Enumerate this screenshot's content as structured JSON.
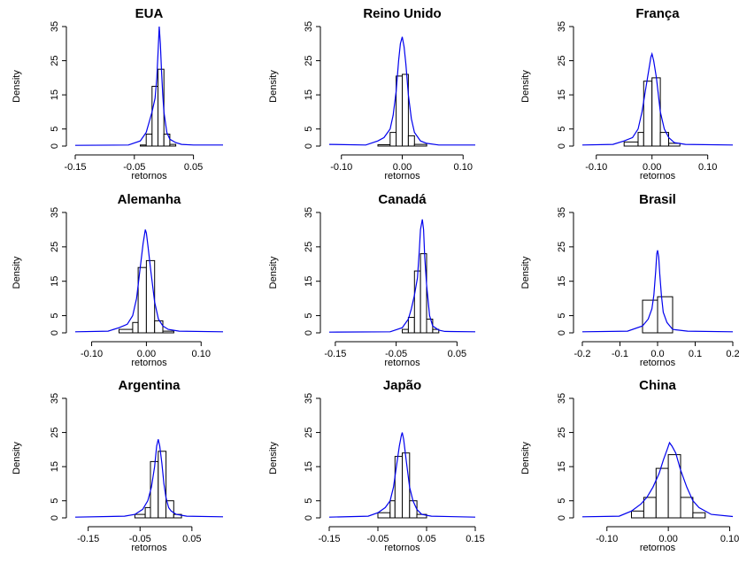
{
  "figure": {
    "panel_count": 9
  },
  "chart_data": [
    {
      "type": "histogram",
      "title": "EUA",
      "xlabel": "retornos",
      "ylabel": "Density",
      "xticks": [
        -0.15,
        -0.05,
        0.05
      ],
      "xtick_labels": [
        "-0.15",
        "-0.05",
        "0.05"
      ],
      "xlim": [
        -0.15,
        0.1
      ],
      "yticks": [
        0,
        5,
        15,
        25,
        35
      ],
      "ytick_labels": [
        "0",
        "5",
        "15",
        "25",
        "35"
      ],
      "ylim": [
        0,
        35
      ],
      "bins": [
        [
          -0.04,
          -0.03,
          0.3
        ],
        [
          -0.03,
          -0.02,
          3.5
        ],
        [
          -0.02,
          -0.01,
          17.5
        ],
        [
          -0.01,
          0.0,
          22.5
        ],
        [
          0.0,
          0.01,
          3.5
        ],
        [
          0.01,
          0.02,
          0.5
        ]
      ],
      "density": {
        "x": [
          -0.15,
          -0.06,
          -0.04,
          -0.03,
          -0.025,
          -0.02,
          -0.015,
          -0.012,
          -0.01,
          -0.008,
          -0.006,
          -0.004,
          -0.002,
          0.0,
          0.005,
          0.01,
          0.02,
          0.03,
          0.05,
          0.1
        ],
        "y": [
          0.2,
          0.3,
          1.5,
          4,
          7,
          10,
          14,
          20,
          27,
          35,
          30,
          22,
          15,
          10,
          4,
          2,
          1.0,
          0.5,
          0.3,
          0.3
        ]
      },
      "color": "#0000ee"
    },
    {
      "type": "histogram",
      "title": "Reino Unido",
      "xlabel": "retornos",
      "ylabel": "Density",
      "xticks": [
        -0.1,
        0.0,
        0.1
      ],
      "xtick_labels": [
        "-0.10",
        "0.00",
        "0.10"
      ],
      "xlim": [
        -0.12,
        0.12
      ],
      "yticks": [
        0,
        5,
        15,
        25,
        35
      ],
      "ytick_labels": [
        "0",
        "5",
        "15",
        "25",
        "35"
      ],
      "ylim": [
        0,
        35
      ],
      "bins": [
        [
          -0.04,
          -0.02,
          0.4
        ],
        [
          -0.02,
          -0.01,
          4
        ],
        [
          -0.01,
          0.0,
          20.5
        ],
        [
          0.0,
          0.01,
          21
        ],
        [
          0.01,
          0.02,
          3
        ],
        [
          0.02,
          0.04,
          0.5
        ]
      ],
      "density": {
        "x": [
          -0.12,
          -0.06,
          -0.04,
          -0.03,
          -0.02,
          -0.015,
          -0.01,
          -0.006,
          -0.003,
          0.0,
          0.003,
          0.006,
          0.01,
          0.015,
          0.02,
          0.03,
          0.04,
          0.06,
          0.12
        ],
        "y": [
          0.5,
          0.3,
          1.5,
          2.5,
          5,
          9,
          16,
          25,
          30,
          32,
          29,
          24,
          15,
          8,
          4,
          1.5,
          0.8,
          0.3,
          0.3
        ]
      },
      "color": "#0000ee"
    },
    {
      "type": "histogram",
      "title": "França",
      "xlabel": "retornos",
      "ylabel": "Density",
      "xticks": [
        -0.1,
        0.0,
        0.1
      ],
      "xtick_labels": [
        "-0.10",
        "0.00",
        "0.10"
      ],
      "xlim": [
        -0.125,
        0.145
      ],
      "yticks": [
        0,
        5,
        15,
        25,
        35
      ],
      "ytick_labels": [
        "0",
        "5",
        "15",
        "25",
        "35"
      ],
      "ylim": [
        0,
        35
      ],
      "bins": [
        [
          -0.05,
          -0.025,
          1.2
        ],
        [
          -0.025,
          -0.015,
          4
        ],
        [
          -0.015,
          0.0,
          19
        ],
        [
          0.0,
          0.015,
          20
        ],
        [
          0.015,
          0.03,
          4
        ],
        [
          0.03,
          0.05,
          0.8
        ]
      ],
      "density": {
        "x": [
          -0.125,
          -0.07,
          -0.05,
          -0.035,
          -0.025,
          -0.018,
          -0.012,
          -0.006,
          -0.002,
          0.0,
          0.003,
          0.008,
          0.015,
          0.022,
          0.03,
          0.04,
          0.06,
          0.145
        ],
        "y": [
          0.3,
          0.5,
          1.5,
          2.5,
          5,
          10,
          16,
          22,
          26,
          27,
          25,
          20,
          10,
          5,
          2.5,
          1,
          0.5,
          0.3
        ]
      },
      "color": "#0000ee"
    },
    {
      "type": "histogram",
      "title": "Alemanha",
      "xlabel": "retornos",
      "ylabel": "Density",
      "xticks": [
        -0.1,
        0.0,
        0.1
      ],
      "xtick_labels": [
        "-0.10",
        "0.00",
        "0.10"
      ],
      "xlim": [
        -0.13,
        0.14
      ],
      "yticks": [
        0,
        5,
        15,
        25,
        35
      ],
      "ytick_labels": [
        "0",
        "5",
        "15",
        "25",
        "35"
      ],
      "ylim": [
        0,
        35
      ],
      "bins": [
        [
          -0.05,
          -0.025,
          1
        ],
        [
          -0.025,
          -0.015,
          3
        ],
        [
          -0.015,
          0.0,
          19
        ],
        [
          0.0,
          0.015,
          21
        ],
        [
          0.015,
          0.03,
          3.5
        ],
        [
          0.03,
          0.05,
          0.5
        ]
      ],
      "density": {
        "x": [
          -0.13,
          -0.07,
          -0.05,
          -0.035,
          -0.025,
          -0.018,
          -0.012,
          -0.006,
          -0.002,
          0.0,
          0.003,
          0.008,
          0.015,
          0.022,
          0.03,
          0.04,
          0.06,
          0.14
        ],
        "y": [
          0.3,
          0.5,
          1.5,
          2.5,
          5,
          10,
          18,
          26,
          30,
          29,
          25,
          18,
          9,
          4,
          2,
          1,
          0.5,
          0.3
        ]
      },
      "color": "#0000ee"
    },
    {
      "type": "histogram",
      "title": "Canadá",
      "xlabel": "retornos",
      "ylabel": "Density",
      "xticks": [
        -0.15,
        -0.05,
        0.05
      ],
      "xtick_labels": [
        "-0.15",
        "-0.05",
        "0.05"
      ],
      "xlim": [
        -0.16,
        0.08
      ],
      "yticks": [
        0,
        5,
        15,
        25,
        35
      ],
      "ytick_labels": [
        "0",
        "5",
        "15",
        "25",
        "35"
      ],
      "ylim": [
        0,
        35
      ],
      "bins": [
        [
          -0.04,
          -0.03,
          1
        ],
        [
          -0.03,
          -0.02,
          4.5
        ],
        [
          -0.02,
          -0.01,
          18
        ],
        [
          -0.01,
          0.0,
          23
        ],
        [
          0.0,
          0.01,
          4
        ],
        [
          0.01,
          0.02,
          1
        ]
      ],
      "density": {
        "x": [
          -0.16,
          -0.06,
          -0.04,
          -0.03,
          -0.025,
          -0.02,
          -0.015,
          -0.012,
          -0.01,
          -0.007,
          -0.005,
          -0.003,
          0.0,
          0.005,
          0.01,
          0.02,
          0.03,
          0.08
        ],
        "y": [
          0.2,
          0.3,
          1.5,
          4,
          7,
          11,
          16,
          24,
          30,
          33,
          30,
          22,
          14,
          5,
          2,
          0.8,
          0.4,
          0.3
        ]
      },
      "color": "#0000ee"
    },
    {
      "type": "histogram",
      "title": "Brasil",
      "xlabel": "retornos",
      "ylabel": "Density",
      "xticks": [
        -0.2,
        -0.1,
        0.0,
        0.1,
        0.2
      ],
      "xtick_labels": [
        "-0.2",
        "-0.1",
        "0.0",
        "0.1",
        "0.2"
      ],
      "xlim": [
        -0.2,
        0.2
      ],
      "yticks": [
        0,
        5,
        15,
        25,
        35
      ],
      "ytick_labels": [
        "0",
        "5",
        "15",
        "25",
        "35"
      ],
      "ylim": [
        0,
        35
      ],
      "bins": [
        [
          -0.04,
          0.0,
          9.5
        ],
        [
          0.0,
          0.04,
          10.5
        ]
      ],
      "density": {
        "x": [
          -0.2,
          -0.08,
          -0.04,
          -0.025,
          -0.015,
          -0.01,
          -0.005,
          -0.002,
          0.0,
          0.003,
          0.006,
          0.01,
          0.015,
          0.025,
          0.04,
          0.08,
          0.2
        ],
        "y": [
          0.3,
          0.5,
          2,
          4,
          7,
          11,
          18,
          23,
          24,
          22,
          17,
          11,
          6,
          3,
          1,
          0.5,
          0.3
        ]
      },
      "color": "#0000ee"
    },
    {
      "type": "histogram",
      "title": "Argentina",
      "xlabel": "retornos",
      "ylabel": "Density",
      "xticks": [
        -0.15,
        -0.05,
        0.05
      ],
      "xtick_labels": [
        "-0.15",
        "-0.05",
        "0.05"
      ],
      "xlim": [
        -0.175,
        0.11
      ],
      "yticks": [
        0,
        5,
        15,
        25,
        35
      ],
      "ytick_labels": [
        "0",
        "5",
        "15",
        "25",
        "35"
      ],
      "ylim": [
        0,
        35
      ],
      "bins": [
        [
          -0.06,
          -0.04,
          1
        ],
        [
          -0.04,
          -0.03,
          3
        ],
        [
          -0.03,
          -0.015,
          16.5
        ],
        [
          -0.015,
          0.0,
          19.5
        ],
        [
          0.0,
          0.015,
          5
        ],
        [
          0.015,
          0.03,
          1
        ]
      ],
      "density": {
        "x": [
          -0.175,
          -0.08,
          -0.06,
          -0.045,
          -0.035,
          -0.028,
          -0.022,
          -0.018,
          -0.015,
          -0.012,
          -0.008,
          -0.004,
          0.0,
          0.005,
          0.01,
          0.02,
          0.04,
          0.11
        ],
        "y": [
          0.2,
          0.5,
          1,
          2.5,
          5,
          9,
          15,
          21,
          23,
          21,
          16,
          10,
          6,
          3,
          2,
          1,
          0.5,
          0.3
        ]
      },
      "color": "#0000ee"
    },
    {
      "type": "histogram",
      "title": "Japão",
      "xlabel": "retornos",
      "ylabel": "Density",
      "xticks": [
        -0.15,
        -0.05,
        0.05,
        0.15
      ],
      "xtick_labels": [
        "-0.15",
        "-0.05",
        "0.05",
        "0.15"
      ],
      "xlim": [
        -0.15,
        0.15
      ],
      "yticks": [
        0,
        5,
        15,
        25,
        35
      ],
      "ytick_labels": [
        "0",
        "5",
        "15",
        "25",
        "35"
      ],
      "ylim": [
        0,
        35
      ],
      "bins": [
        [
          -0.05,
          -0.025,
          1.5
        ],
        [
          -0.025,
          -0.015,
          5
        ],
        [
          -0.015,
          0.0,
          18
        ],
        [
          0.0,
          0.015,
          19
        ],
        [
          0.015,
          0.03,
          5
        ],
        [
          0.03,
          0.05,
          1
        ]
      ],
      "density": {
        "x": [
          -0.15,
          -0.07,
          -0.05,
          -0.035,
          -0.025,
          -0.018,
          -0.012,
          -0.006,
          -0.002,
          0.0,
          0.003,
          0.008,
          0.015,
          0.022,
          0.03,
          0.04,
          0.06,
          0.15
        ],
        "y": [
          0.2,
          0.5,
          1.5,
          3,
          5,
          9,
          15,
          21,
          24,
          25,
          23,
          17,
          9,
          5,
          2.5,
          1,
          0.5,
          0.2
        ]
      },
      "color": "#0000ee"
    },
    {
      "type": "histogram",
      "title": "China",
      "xlabel": "retornos",
      "ylabel": "Density",
      "xticks": [
        -0.1,
        0.0,
        0.1
      ],
      "xtick_labels": [
        "-0.10",
        "0.00",
        "0.10"
      ],
      "xlim": [
        -0.14,
        0.105
      ],
      "yticks": [
        0,
        5,
        15,
        25,
        35
      ],
      "ytick_labels": [
        "0",
        "5",
        "15",
        "25",
        "35"
      ],
      "ylim": [
        0,
        35
      ],
      "bins": [
        [
          -0.06,
          -0.04,
          2
        ],
        [
          -0.04,
          -0.02,
          6
        ],
        [
          -0.02,
          0.0,
          14.5
        ],
        [
          0.0,
          0.02,
          18.5
        ],
        [
          0.02,
          0.04,
          6
        ],
        [
          0.04,
          0.06,
          1.5
        ]
      ],
      "density": {
        "x": [
          -0.14,
          -0.08,
          -0.06,
          -0.045,
          -0.035,
          -0.025,
          -0.015,
          -0.008,
          -0.002,
          0.002,
          0.006,
          0.012,
          0.02,
          0.03,
          0.04,
          0.05,
          0.07,
          0.105
        ],
        "y": [
          0.3,
          0.5,
          2,
          4,
          6,
          9,
          13,
          17,
          20,
          22,
          21,
          19,
          14,
          9,
          5,
          3,
          1,
          0.4
        ]
      },
      "color": "#0000ee"
    }
  ]
}
